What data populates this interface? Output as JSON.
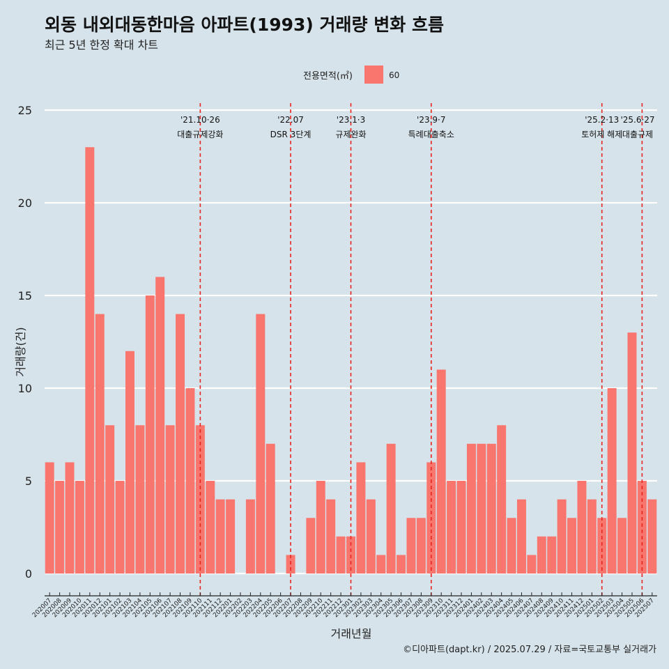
{
  "chart_data": {
    "type": "bar",
    "title": "외동 내외대동한마음 아파트(1993) 거래량 변화 흐름",
    "subtitle": "최근 5년 한정 확대 차트",
    "xlabel": "거래년월",
    "ylabel": "거래량(건)",
    "ylim": [
      0,
      25
    ],
    "yticks": [
      0,
      5,
      10,
      15,
      20,
      25
    ],
    "grid": true,
    "legend": {
      "position": "top",
      "title": "전용면적(㎡)",
      "entries": [
        "60"
      ]
    },
    "caption": "©디아파트(dapt.kr) / 2025.07.29 / 자료=국토교통부 실거래가",
    "categories": [
      "202007",
      "202008",
      "202009",
      "202010",
      "202011",
      "202012",
      "202101",
      "202102",
      "202103",
      "202104",
      "202105",
      "202106",
      "202107",
      "202108",
      "202109",
      "202110",
      "202111",
      "202112",
      "202201",
      "202202",
      "202203",
      "202204",
      "202205",
      "202206",
      "202207",
      "202208",
      "202209",
      "202210",
      "202211",
      "202212",
      "202301",
      "202302",
      "202303",
      "202304",
      "202305",
      "202306",
      "202307",
      "202308",
      "202309",
      "202310",
      "202311",
      "202312",
      "202401",
      "202402",
      "202403",
      "202404",
      "202405",
      "202406",
      "202407",
      "202408",
      "202409",
      "202410",
      "202411",
      "202412",
      "202501",
      "202502",
      "202503",
      "202504",
      "202505",
      "202506",
      "202507"
    ],
    "series": [
      {
        "name": "60",
        "color": "#f8766d",
        "values": [
          6,
          5,
          6,
          5,
          23,
          14,
          8,
          5,
          12,
          8,
          15,
          16,
          8,
          14,
          10,
          8,
          5,
          4,
          4,
          0,
          4,
          14,
          7,
          0,
          1,
          0,
          3,
          5,
          4,
          2,
          2,
          6,
          4,
          1,
          7,
          1,
          3,
          3,
          6,
          11,
          5,
          5,
          7,
          7,
          7,
          8,
          3,
          4,
          1,
          2,
          2,
          4,
          3,
          5,
          4,
          3,
          10,
          3,
          13,
          5,
          4
        ]
      }
    ],
    "annotations": [
      {
        "date": "202110",
        "line1": "'21.10·26",
        "line2": "대출규제강화"
      },
      {
        "date": "202207",
        "line1": "'22.07",
        "line2": "DSR 3단계"
      },
      {
        "date": "202301",
        "line1": "'23.1·3",
        "line2": "규제완화"
      },
      {
        "date": "202309",
        "line1": "'23.9·7",
        "line2": "특례대출축소"
      },
      {
        "date": "202502",
        "line1": "'25.2·13",
        "line2": "토허제 해제"
      },
      {
        "date": "202506",
        "line1": "'25.6·27",
        "line2": "대출규제"
      }
    ],
    "colors": {
      "background": "#d6e3ea",
      "bar": "#f8766d",
      "annotation": "#e8251f",
      "grid": "#ffffff"
    }
  }
}
